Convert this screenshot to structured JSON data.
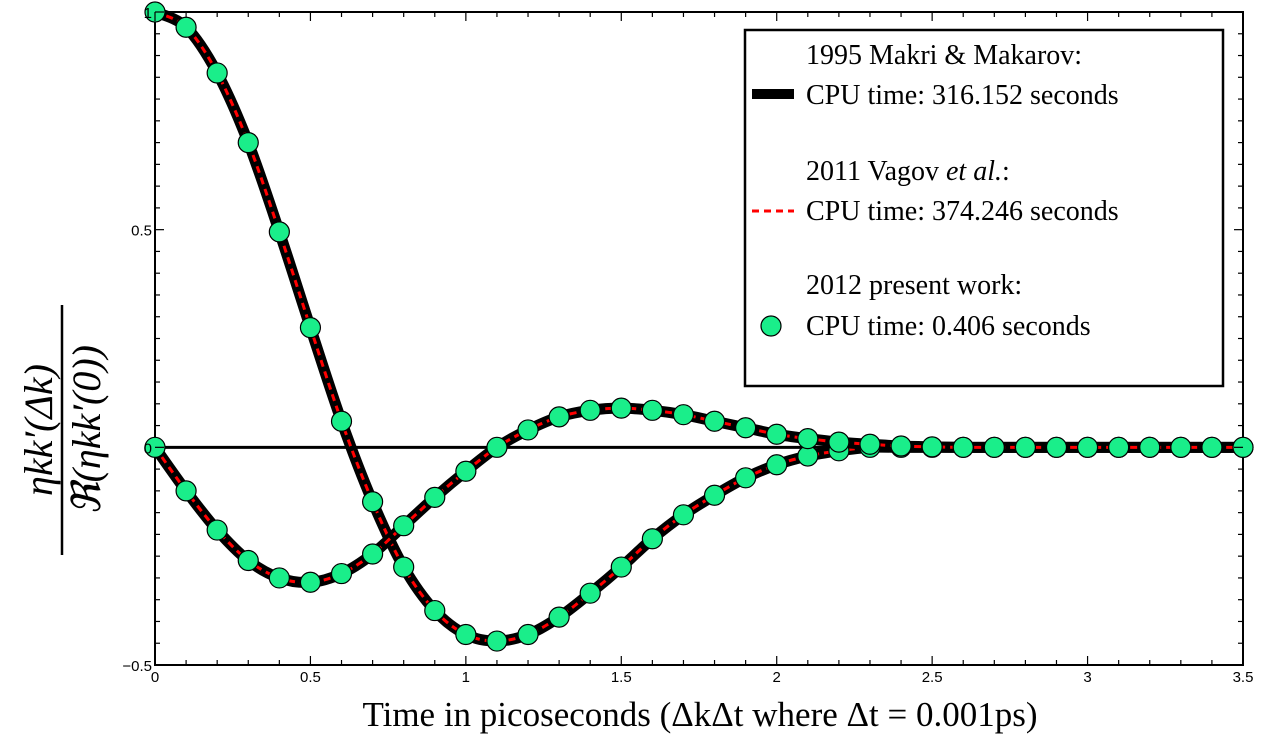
{
  "chart_data": {
    "type": "line",
    "xlabel": "Time in picoseconds (ΔkΔt where Δt = 0.001ps)",
    "ylabel_numerator": "ηkk′(Δk)",
    "ylabel_denominator": "ℜ(ηkk′(0))",
    "xlim": [
      0,
      3.5
    ],
    "ylim": [
      -0.5,
      1
    ],
    "x_ticks": [
      0,
      0.5,
      1,
      1.5,
      2,
      2.5,
      3,
      3.5
    ],
    "x_tick_labels": [
      "0",
      "0.5",
      "1",
      "1.5",
      "2",
      "2.5",
      "3",
      "3.5"
    ],
    "y_ticks": [
      -0.5,
      0,
      0.5,
      1
    ],
    "y_tick_labels": [
      "−0.5",
      "0",
      "0.5",
      "1"
    ],
    "grid": false,
    "legend_position": "top-right",
    "legend": [
      {
        "line1": "1995 Makri & Makarov:",
        "line2": "CPU time: 316.152 seconds",
        "style": "thick-black-line",
        "color": "#000000"
      },
      {
        "line1_prefix": "2011 Vagov ",
        "line1_italic": "et al.",
        "line1_suffix": ":",
        "line2": "CPU time: 374.246 seconds",
        "style": "red-dashed-line",
        "color": "#ff0000"
      },
      {
        "line1": "2012 present work:",
        "line2": "CPU time: 0.406 seconds",
        "style": "green-circle-marker",
        "color": "#1aee8a"
      }
    ],
    "x": [
      0,
      0.1,
      0.2,
      0.3,
      0.4,
      0.5,
      0.6,
      0.7,
      0.8,
      0.9,
      1.0,
      1.1,
      1.2,
      1.3,
      1.4,
      1.5,
      1.6,
      1.7,
      1.8,
      1.9,
      2.0,
      2.1,
      2.2,
      2.3,
      2.4,
      2.5,
      2.6,
      2.7,
      2.8,
      2.9,
      3.0,
      3.1,
      3.2,
      3.3,
      3.4,
      3.5
    ],
    "series": [
      {
        "values": [
          1.0,
          0.965,
          0.86,
          0.7,
          0.495,
          0.275,
          0.06,
          -0.125,
          -0.275,
          -0.375,
          -0.43,
          -0.445,
          -0.43,
          -0.39,
          -0.335,
          -0.275,
          -0.21,
          -0.155,
          -0.11,
          -0.07,
          -0.04,
          -0.02,
          -0.008,
          0.0,
          0.0,
          0.0,
          0.0,
          0.0,
          0.0,
          0.0,
          0.0,
          0.0,
          0.0,
          0.0,
          0.0,
          0.0
        ]
      },
      {
        "values": [
          0.0,
          -0.1,
          -0.19,
          -0.26,
          -0.3,
          -0.31,
          -0.29,
          -0.245,
          -0.18,
          -0.115,
          -0.055,
          0.0,
          0.04,
          0.07,
          0.085,
          0.09,
          0.085,
          0.075,
          0.06,
          0.045,
          0.03,
          0.02,
          0.012,
          0.007,
          0.003,
          0.001,
          0.0,
          0.0,
          0.0,
          0.0,
          0.0,
          0.0,
          0.0,
          0.0,
          0.0,
          0.0
        ]
      }
    ],
    "zero_line": 0
  }
}
